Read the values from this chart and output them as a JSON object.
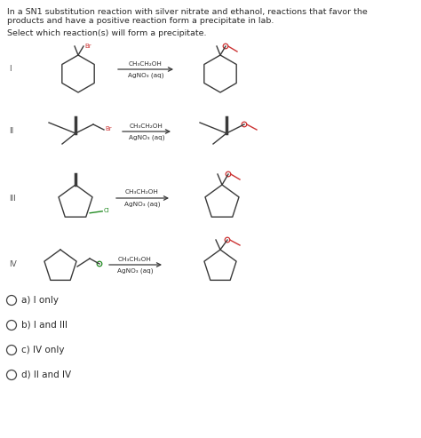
{
  "background_color": "#ffffff",
  "title_line1": "In a SN1 substitution reaction with silver nitrate and ethanol, reactions that favor the",
  "title_line2": "products and have a positive reaction form a precipitate in lab.",
  "subtitle": "Select which reaction(s) will form a precipitate.",
  "reagent1": "CH₃CH₂OH",
  "reagent2": "AgNO₃ (aq)",
  "choices": [
    "a) I only",
    "b) I and III",
    "c) IV only",
    "d) II and IV"
  ],
  "text_color": "#2a2a2a",
  "label_color": "#555555",
  "structure_color": "#3a3a3a",
  "product_color": "#cc3333",
  "halogen_br": "#cc3333",
  "halogen_cl": "#228B22",
  "row_labels": [
    "I",
    "II",
    "III",
    "IV"
  ]
}
